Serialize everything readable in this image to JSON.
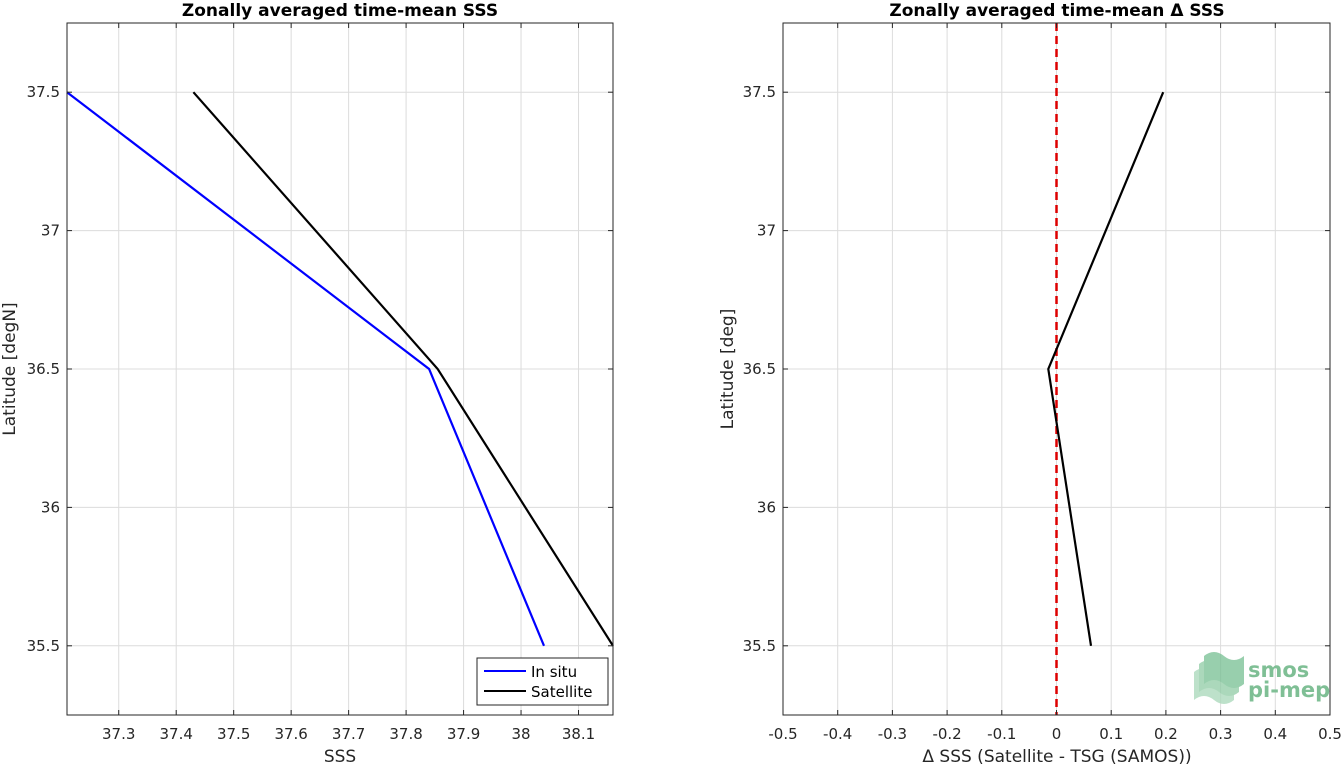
{
  "chart_data": [
    {
      "type": "line",
      "title": "Zonally averaged time-mean SSS",
      "xlabel": "SSS",
      "ylabel": "Latitude [degN]",
      "xlim": [
        37.21,
        38.16
      ],
      "ylim": [
        35.25,
        37.75
      ],
      "xticks": [
        37.3,
        37.4,
        37.5,
        37.6,
        37.7,
        37.8,
        37.9,
        38,
        38.1
      ],
      "xtick_labels": [
        "37.3",
        "37.4",
        "37.5",
        "37.6",
        "37.7",
        "37.8",
        "37.9",
        "38",
        "38.1"
      ],
      "yticks": [
        35.5,
        36,
        36.5,
        37,
        37.5
      ],
      "ytick_labels": [
        "35.5",
        "36",
        "36.5",
        "37",
        "37.5"
      ],
      "grid": true,
      "legend_position": "bottom-right",
      "series": [
        {
          "name": "In situ",
          "color": "#0000ff",
          "x": [
            37.21,
            37.84,
            38.04
          ],
          "y": [
            37.5,
            36.5,
            35.5
          ]
        },
        {
          "name": "Satellite",
          "color": "#000000",
          "x": [
            37.43,
            37.855,
            38.16
          ],
          "y": [
            37.5,
            36.5,
            35.5
          ]
        }
      ]
    },
    {
      "type": "line",
      "title": "Zonally averaged time-mean Δ SSS",
      "xlabel": "Δ SSS (Satellite - TSG (SAMOS))",
      "ylabel": "Latitude [deg]",
      "xlim": [
        -0.5,
        0.5
      ],
      "ylim": [
        35.25,
        37.75
      ],
      "xticks": [
        -0.5,
        -0.4,
        -0.3,
        -0.2,
        -0.1,
        0,
        0.1,
        0.2,
        0.3,
        0.4,
        0.5
      ],
      "xtick_labels": [
        "-0.5",
        "-0.4",
        "-0.3",
        "-0.2",
        "-0.1",
        "0",
        "0.1",
        "0.2",
        "0.3",
        "0.4",
        "0.5"
      ],
      "yticks": [
        35.5,
        36,
        36.5,
        37,
        37.5
      ],
      "ytick_labels": [
        "35.5",
        "36",
        "36.5",
        "37",
        "37.5"
      ],
      "grid": true,
      "reference_line": {
        "x": 0,
        "color": "#dd0000",
        "style": "dashed"
      },
      "series": [
        {
          "color": "#000000",
          "x": [
            0.195,
            -0.015,
            0.063
          ],
          "y": [
            37.5,
            36.5,
            35.5
          ]
        }
      ]
    }
  ],
  "logo": {
    "line1": "smos",
    "line2": "pi-mep",
    "color": "#7fbf95"
  }
}
